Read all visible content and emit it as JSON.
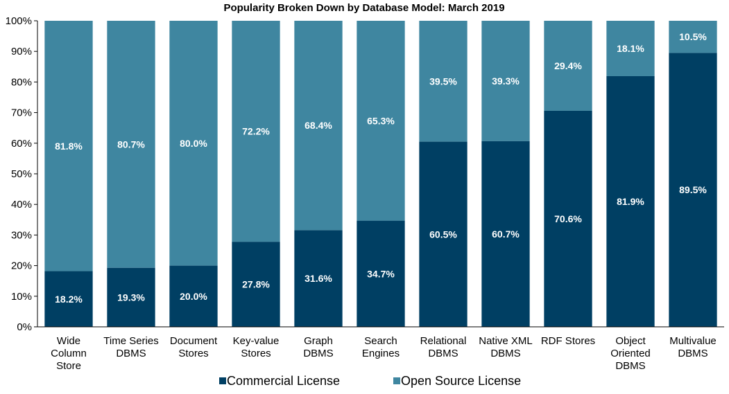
{
  "chart_data": {
    "type": "bar",
    "stacked": true,
    "title": "Popularity Broken Down by Database Model: March 2019",
    "xlabel": "",
    "ylabel": "",
    "ylim": [
      0,
      100
    ],
    "y_ticks": [
      "0%",
      "10%",
      "20%",
      "30%",
      "40%",
      "50%",
      "60%",
      "70%",
      "80%",
      "90%",
      "100%"
    ],
    "grid": false,
    "legend_position": "bottom",
    "categories": [
      [
        "Wide",
        "Column",
        "Store"
      ],
      [
        "Time Series",
        "DBMS"
      ],
      [
        "Document",
        "Stores"
      ],
      [
        "Key-value",
        "Stores"
      ],
      [
        "Graph",
        "DBMS"
      ],
      [
        "Search",
        "Engines"
      ],
      [
        "Relational",
        "DBMS"
      ],
      [
        "Native XML",
        "DBMS"
      ],
      [
        "RDF Stores"
      ],
      [
        "Object",
        "Oriented",
        "DBMS"
      ],
      [
        "Multivalue",
        "DBMS"
      ]
    ],
    "series": [
      {
        "name": "Commercial License",
        "color": "#003f63",
        "values": [
          18.2,
          19.3,
          20.0,
          27.8,
          31.6,
          34.7,
          60.5,
          60.7,
          70.6,
          81.9,
          89.5
        ],
        "labels": [
          "18.2%",
          "19.3%",
          "20.0%",
          "27.8%",
          "31.6%",
          "34.7%",
          "60.5%",
          "60.7%",
          "70.6%",
          "81.9%",
          "89.5%"
        ]
      },
      {
        "name": "Open Source License",
        "color": "#3f86a0",
        "values": [
          81.8,
          80.7,
          80.0,
          72.2,
          68.4,
          65.3,
          39.5,
          39.3,
          29.4,
          18.1,
          10.5
        ],
        "labels": [
          "81.8%",
          "80.7%",
          "80.0%",
          "72.2%",
          "68.4%",
          "65.3%",
          "39.5%",
          "39.3%",
          "29.4%",
          "18.1%",
          "10.5%"
        ]
      }
    ]
  }
}
